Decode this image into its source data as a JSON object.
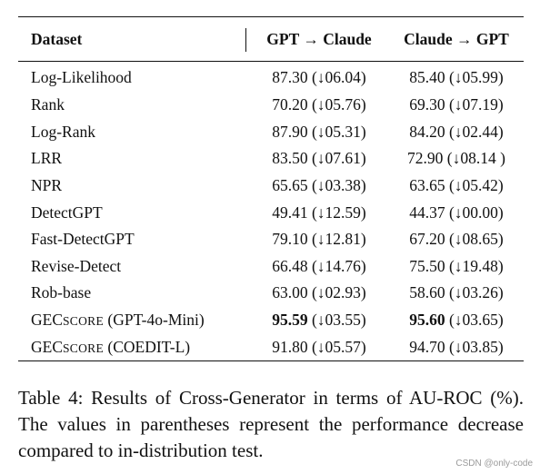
{
  "table": {
    "headers": [
      "Dataset",
      "GPT → Claude",
      "Claude → GPT"
    ],
    "rows": [
      {
        "dataset": "Log-Likelihood",
        "gpt_to_claude": "87.30 (↓06.04)",
        "claude_to_gpt": "85.40 (↓05.99)"
      },
      {
        "dataset": "Rank",
        "gpt_to_claude": "70.20 (↓05.76)",
        "claude_to_gpt": "69.30 (↓07.19)"
      },
      {
        "dataset": "Log-Rank",
        "gpt_to_claude": "87.90 (↓05.31)",
        "claude_to_gpt": "84.20 (↓02.44)"
      },
      {
        "dataset": "LRR",
        "gpt_to_claude": "83.50 (↓07.61)",
        "claude_to_gpt": "72.90 (↓08.14 )"
      },
      {
        "dataset": "NPR",
        "gpt_to_claude": "65.65 (↓03.38)",
        "claude_to_gpt": "63.65 (↓05.42)"
      },
      {
        "dataset": "DetectGPT",
        "gpt_to_claude": "49.41 (↓12.59)",
        "claude_to_gpt": "44.37 (↓00.00)"
      },
      {
        "dataset": "Fast-DetectGPT",
        "gpt_to_claude": "79.10 (↓12.81)",
        "claude_to_gpt": "67.20 (↓08.65)"
      },
      {
        "dataset": "Revise-Detect",
        "gpt_to_claude": "66.48 (↓14.76)",
        "claude_to_gpt": "75.50 (↓19.48)"
      },
      {
        "dataset": "Rob-base",
        "gpt_to_claude": "63.00 (↓02.93)",
        "claude_to_gpt": "58.60 (↓03.26)"
      },
      {
        "dataset_prefix": "GEC",
        "dataset_sc": "SCORE",
        "dataset_suffix": " (GPT-4o-Mini)",
        "gpt_to_claude_bold": "95.59",
        "gpt_to_claude_rest": " (↓03.55)",
        "claude_to_gpt_bold": "95.60",
        "claude_to_gpt_rest": " (↓03.65)"
      },
      {
        "dataset_prefix": "GEC",
        "dataset_sc": "SCORE",
        "dataset_suffix": " (COEDIT-L)",
        "gpt_to_claude": "91.80 (↓05.57)",
        "claude_to_gpt": "94.70 (↓03.85)"
      }
    ]
  },
  "caption": "Table 4:  Results of Cross-Generator in terms of AU-ROC (%). The values in parentheses represent the performance decrease compared to in-distribution test.",
  "watermark": "CSDN @only-code"
}
